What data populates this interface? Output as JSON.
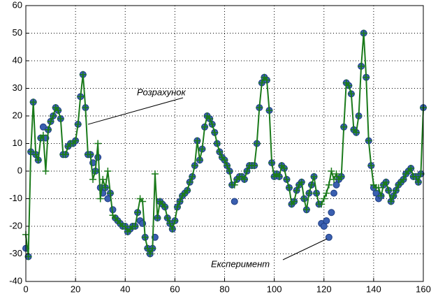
{
  "chart_data": {
    "type": "line",
    "x": [
      0,
      1,
      2,
      3,
      4,
      5,
      6,
      7,
      8,
      9,
      10,
      11,
      12,
      13,
      14,
      15,
      16,
      17,
      18,
      19,
      20,
      21,
      22,
      23,
      24,
      25,
      26,
      27,
      28,
      29,
      30,
      31,
      32,
      33,
      34,
      35,
      36,
      37,
      38,
      39,
      40,
      41,
      42,
      43,
      44,
      45,
      46,
      47,
      48,
      49,
      50,
      51,
      52,
      53,
      54,
      55,
      56,
      57,
      58,
      59,
      60,
      61,
      62,
      63,
      64,
      65,
      66,
      67,
      68,
      69,
      70,
      71,
      72,
      73,
      74,
      75,
      76,
      77,
      78,
      79,
      80,
      81,
      82,
      83,
      84,
      85,
      86,
      87,
      88,
      89,
      90,
      91,
      92,
      93,
      94,
      95,
      96,
      97,
      98,
      99,
      100,
      101,
      102,
      103,
      104,
      105,
      106,
      107,
      108,
      109,
      110,
      111,
      112,
      113,
      114,
      115,
      116,
      117,
      118,
      119,
      120,
      121,
      122,
      123,
      124,
      125,
      126,
      127,
      128,
      129,
      130,
      131,
      132,
      133,
      134,
      135,
      136,
      137,
      138,
      139,
      140,
      141,
      142,
      143,
      144,
      145,
      146,
      147,
      148,
      149,
      150,
      151,
      152,
      153,
      154,
      155,
      156,
      157,
      158,
      159,
      160
    ],
    "series": [
      {
        "name": "Експеримент",
        "color": "#3a5fb0",
        "marker": "circle",
        "values": [
          -28,
          -31,
          7,
          25,
          6,
          4,
          12,
          16,
          12,
          15,
          18,
          20,
          23,
          22,
          19,
          6,
          6,
          9,
          10,
          10,
          11,
          17,
          27,
          35,
          23,
          6,
          6,
          3,
          0,
          5,
          -6,
          -8,
          -6,
          -10,
          -8,
          -14,
          -17,
          -18,
          -19,
          -20,
          -20,
          -22,
          -21,
          -20,
          -20,
          -15,
          -18,
          -19,
          -24,
          -28,
          -30,
          -28,
          -24,
          -17,
          -11,
          -12,
          -13,
          -17,
          -19,
          -21,
          -18,
          -13,
          -11,
          -9,
          -8,
          -7,
          -4,
          -2,
          2,
          11,
          4,
          8,
          16,
          20,
          19,
          17,
          14,
          10,
          7,
          5,
          4,
          2,
          0,
          -5,
          -11,
          -3,
          -2,
          -2,
          -3,
          0,
          2,
          2,
          2,
          10,
          23,
          32,
          34,
          33,
          22,
          3,
          -2,
          -1,
          -2,
          2,
          1,
          -3,
          -6,
          -12,
          -11,
          -7,
          -5,
          -4,
          -10,
          -14,
          -8,
          -5,
          -2,
          -8,
          -12,
          -19,
          -20,
          -18,
          -24,
          -15,
          -8,
          -5,
          -3,
          -2,
          16,
          32,
          31,
          28,
          15,
          14,
          20,
          38,
          50,
          34,
          11,
          2,
          -6,
          -8,
          -10,
          -9,
          -5,
          -4,
          -7,
          -11,
          -9,
          -7,
          -5,
          -4,
          -3,
          -1,
          0,
          1,
          -2,
          -2,
          -4,
          -1,
          23
        ]
      },
      {
        "name": "Розрахунок",
        "color": "#1a7a1a",
        "marker": "plus",
        "values": [
          -23,
          -31,
          7,
          25,
          6,
          4,
          12,
          13,
          0,
          15,
          18,
          20,
          23,
          22,
          19,
          6,
          6,
          9,
          10,
          10,
          11,
          17,
          27,
          35,
          23,
          6,
          6,
          -3,
          0,
          10,
          -10,
          -3,
          -6,
          0,
          -8,
          -16,
          -17,
          -18,
          -19,
          -20,
          -20,
          -22,
          -21,
          -20,
          -20,
          -15,
          -10,
          -11,
          -24,
          -28,
          -30,
          -28,
          -1,
          -17,
          -11,
          -12,
          -13,
          -17,
          -19,
          -21,
          -18,
          -13,
          -11,
          -9,
          -8,
          -7,
          -4,
          -2,
          2,
          11,
          4,
          8,
          16,
          20,
          19,
          17,
          14,
          10,
          7,
          5,
          4,
          2,
          0,
          -5,
          -5,
          -3,
          -2,
          -2,
          -3,
          0,
          2,
          2,
          2,
          10,
          23,
          32,
          34,
          33,
          22,
          3,
          -2,
          -1,
          -2,
          2,
          1,
          -3,
          -6,
          -12,
          -11,
          -7,
          -5,
          -4,
          -10,
          -14,
          -8,
          -5,
          -2,
          -8,
          -12,
          -12,
          -10,
          -8,
          -5,
          0,
          -3,
          -1,
          -3,
          -2,
          16,
          32,
          31,
          28,
          15,
          14,
          20,
          38,
          50,
          34,
          11,
          2,
          -5,
          -6,
          -6,
          -9,
          -5,
          -4,
          -7,
          -11,
          -9,
          -7,
          -5,
          -4,
          -3,
          -1,
          0,
          1,
          -2,
          -2,
          -4,
          -1,
          23
        ]
      }
    ],
    "xlim": [
      0,
      160
    ],
    "xticks": [
      0,
      20,
      40,
      60,
      80,
      100,
      120,
      140,
      160
    ],
    "ylim": [
      -40,
      60
    ],
    "yticks": [
      -40,
      -30,
      -20,
      -10,
      0,
      10,
      20,
      30,
      40,
      50,
      60
    ],
    "grid": true
  }
}
